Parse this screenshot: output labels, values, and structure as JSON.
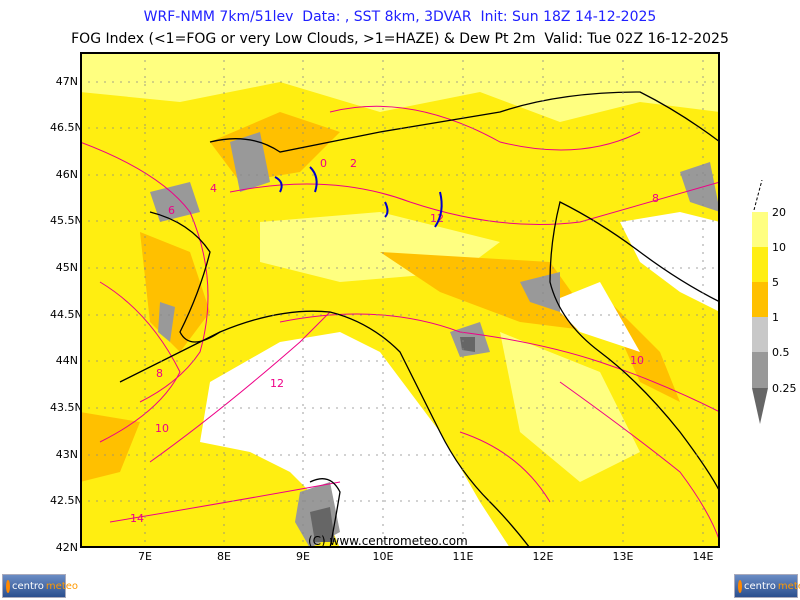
{
  "header": {
    "line1": "WRF-NMM 7km/51lev  Data: , SST 8km, 3DVAR  Init: Sun 18Z 14-12-2025",
    "line2": "FOG Index (<1=FOG or very Low Clouds, >1=HAZE) & Dew Pt 2m  Valid: Tue 02Z 16-12-2025"
  },
  "axes": {
    "lat_labels": [
      "47N",
      "46.5N",
      "46N",
      "45.5N",
      "45N",
      "44.5N",
      "44N",
      "43.5N",
      "43N",
      "42.5N",
      "42N"
    ],
    "lon_labels": [
      "7E",
      "8E",
      "9E",
      "10E",
      "11E",
      "12E",
      "13E",
      "14E"
    ]
  },
  "colorbar": {
    "labels": [
      "20",
      "10",
      "5",
      "1",
      "0.5",
      "0.25"
    ],
    "colors": [
      "#ffff80",
      "#ffee11",
      "#ffc000",
      "#c8c8c8",
      "#999999",
      "#666666"
    ]
  },
  "contour_labels": [
    "2",
    "4",
    "6",
    "8",
    "10",
    "12",
    "14",
    "0"
  ],
  "colors": {
    "fog": "#999999",
    "haze": "#ffee11",
    "dewpoint_contour": "#ee0088",
    "coast": "#000000",
    "sea": "#ffffff"
  },
  "watermark": "(C) www.centrometeo.com",
  "logo": {
    "left": "centro",
    "right": "meteo"
  }
}
